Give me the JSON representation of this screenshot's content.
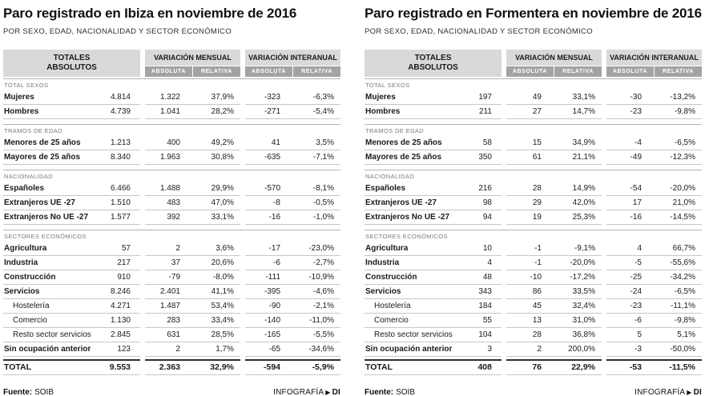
{
  "colors": {
    "header_bg": "#d9d9d9",
    "subheader_bg": "#a3a3a3",
    "row_line": "#c6c6c6",
    "total_line": "#2e2e2e",
    "section_text": "#7a7a7a"
  },
  "icons": {
    "credit_marker": "▶"
  },
  "chart_data": [
    {
      "type": "table",
      "title": "Paro registrado en Ibiza en noviembre de 2016",
      "subtitle": "POR SEXO, EDAD, NACIONALIDAD Y SECTOR ECONÓMICO",
      "headers": {
        "totales": "TOTALES ABSOLUTOS",
        "mensual": "VARIACIÓN MENSUAL",
        "interanual": "VARIACIÓN INTERANUAL",
        "absoluta": "ABSOLUTA",
        "relativa": "RELATIVA"
      },
      "sections": [
        {
          "header": "TOTAL SEXOS",
          "rows": [
            {
              "label": "Mujeres",
              "values": [
                "4.814",
                "1.322",
                "37,9%",
                "-323",
                "-6,3%"
              ]
            },
            {
              "label": "Hombres",
              "values": [
                "4.739",
                "1.041",
                "28,2%",
                "-271",
                "-5,4%"
              ]
            }
          ]
        },
        {
          "header": "TRAMOS DE EDAD",
          "rows": [
            {
              "label": "Menores de 25 años",
              "values": [
                "1.213",
                "400",
                "49,2%",
                "41",
                "3,5%"
              ]
            },
            {
              "label": "Mayores de 25 años",
              "values": [
                "8.340",
                "1.963",
                "30,8%",
                "-635",
                "-7,1%"
              ]
            }
          ]
        },
        {
          "header": "NACIONALIDAD",
          "rows": [
            {
              "label": "Españoles",
              "values": [
                "6.466",
                "1.488",
                "29,9%",
                "-570",
                "-8,1%"
              ]
            },
            {
              "label": "Extranjeros UE -27",
              "values": [
                "1.510",
                "483",
                "47,0%",
                "-8",
                "-0,5%"
              ]
            },
            {
              "label": "Extranjeros No UE -27",
              "values": [
                "1.577",
                "392",
                "33,1%",
                "-16",
                "-1,0%"
              ]
            }
          ]
        },
        {
          "header": "SECTORES ECONÓMICOS",
          "rows": [
            {
              "label": "Agricultura",
              "values": [
                "57",
                "2",
                "3,6%",
                "-17",
                "-23,0%"
              ]
            },
            {
              "label": "Industria",
              "values": [
                "217",
                "37",
                "20,6%",
                "-6",
                "-2,7%"
              ]
            },
            {
              "label": "Construcción",
              "values": [
                "910",
                "-79",
                "-8,0%",
                "-111",
                "-10,9%"
              ]
            },
            {
              "label": "Servicios",
              "values": [
                "8.246",
                "2.401",
                "41,1%",
                "-395",
                "-4,6%"
              ]
            },
            {
              "label": "Hostelería",
              "indent": true,
              "values": [
                "4.271",
                "1.487",
                "53,4%",
                "-90",
                "-2,1%"
              ]
            },
            {
              "label": "Comercio",
              "indent": true,
              "values": [
                "1.130",
                "283",
                "33,4%",
                "-140",
                "-11,0%"
              ]
            },
            {
              "label": "Resto sector servicios",
              "indent": true,
              "values": [
                "2.845",
                "631",
                "28,5%",
                "-165",
                "-5,5%"
              ]
            },
            {
              "label": "Sin ocupación anterior",
              "values": [
                "123",
                "2",
                "1,7%",
                "-65",
                "-34,6%"
              ]
            }
          ]
        }
      ],
      "total": {
        "label": "TOTAL",
        "values": [
          "9.553",
          "2.363",
          "32,9%",
          "-594",
          "-5,9%"
        ]
      },
      "footer": {
        "source_label": "Fuente:",
        "source_value": "SOIB",
        "credit_label": "INFOGRAFÍA",
        "credit_brand": "DI"
      }
    },
    {
      "type": "table",
      "title": "Paro registrado en Formentera en noviembre de 2016",
      "subtitle": "POR SEXO, EDAD, NACIONALIDAD Y SECTOR ECONÓMICO",
      "headers": {
        "totales": "TOTALES ABSOLUTOS",
        "mensual": "VARIACIÓN MENSUAL",
        "interanual": "VARIACIÓN INTERANUAL",
        "absoluta": "ABSOLUTA",
        "relativa": "RELATIVA"
      },
      "sections": [
        {
          "header": "TOTAL SEXOS",
          "rows": [
            {
              "label": "Mujeres",
              "values": [
                "197",
                "49",
                "33,1%",
                "-30",
                "-13,2%"
              ]
            },
            {
              "label": "Hombres",
              "values": [
                "211",
                "27",
                "14,7%",
                "-23",
                "-9,8%"
              ]
            }
          ]
        },
        {
          "header": "TRAMOS DE EDAD",
          "rows": [
            {
              "label": "Menores de 25 años",
              "values": [
                "58",
                "15",
                "34,9%",
                "-4",
                "-6,5%"
              ]
            },
            {
              "label": "Mayores de 25 años",
              "values": [
                "350",
                "61",
                "21,1%",
                "-49",
                "-12,3%"
              ]
            }
          ]
        },
        {
          "header": "NACIONALIDAD",
          "rows": [
            {
              "label": "Españoles",
              "values": [
                "216",
                "28",
                "14,9%",
                "-54",
                "-20,0%"
              ]
            },
            {
              "label": "Extranjeros UE -27",
              "values": [
                "98",
                "29",
                "42,0%",
                "17",
                "21,0%"
              ]
            },
            {
              "label": "Extranjeros No UE -27",
              "values": [
                "94",
                "19",
                "25,3%",
                "-16",
                "-14,5%"
              ]
            }
          ]
        },
        {
          "header": "SECTORES ECONÓMICOS",
          "rows": [
            {
              "label": "Agricultura",
              "values": [
                "10",
                "-1",
                "-9,1%",
                "4",
                "66,7%"
              ]
            },
            {
              "label": "Industria",
              "values": [
                "4",
                "-1",
                "-20,0%",
                "-5",
                "-55,6%"
              ]
            },
            {
              "label": "Construcción",
              "values": [
                "48",
                "-10",
                "-17,2%",
                "-25",
                "-34,2%"
              ]
            },
            {
              "label": "Servicios",
              "values": [
                "343",
                "86",
                "33,5%",
                "-24",
                "-6,5%"
              ]
            },
            {
              "label": "Hostelería",
              "indent": true,
              "values": [
                "184",
                "45",
                "32,4%",
                "-23",
                "-11,1%"
              ]
            },
            {
              "label": "Comercio",
              "indent": true,
              "values": [
                "55",
                "13",
                "31,0%",
                "-6",
                "-9,8%"
              ]
            },
            {
              "label": "Resto sector servicios",
              "indent": true,
              "values": [
                "104",
                "28",
                "36,8%",
                "5",
                "5,1%"
              ]
            },
            {
              "label": "Sin ocupación anterior",
              "values": [
                "3",
                "2",
                "200,0%",
                "-3",
                "-50,0%"
              ]
            }
          ]
        }
      ],
      "total": {
        "label": "TOTAL",
        "values": [
          "408",
          "76",
          "22,9%",
          "-53",
          "-11,5%"
        ]
      },
      "footer": {
        "source_label": "Fuente:",
        "source_value": "SOIB",
        "credit_label": "INFOGRAFÍA",
        "credit_brand": "DI"
      }
    }
  ]
}
